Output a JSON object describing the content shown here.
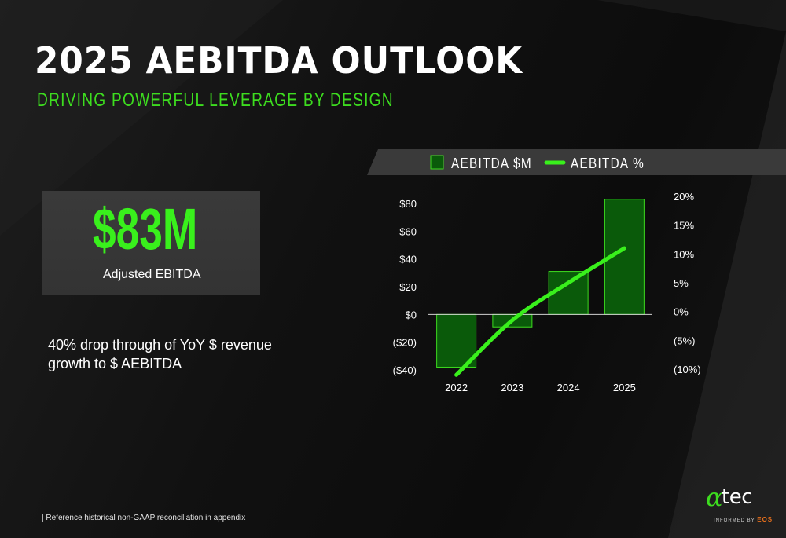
{
  "header": {
    "title": "2025 AEBITDA OUTLOOK",
    "subtitle": "DRIVING POWERFUL LEVERAGE BY DESIGN"
  },
  "kpi": {
    "value": "$83M",
    "label": "Adjusted EBITDA"
  },
  "note": "40% drop through of YoY $ revenue growth to $ AEBITDA",
  "footnote": "| Reference historical non-GAAP reconciliation in appendix",
  "logo": {
    "alpha": "α",
    "word": "tec",
    "tag_prefix": "INFORMED BY",
    "tag_brand": "EOS"
  },
  "colors": {
    "accent": "#3ddc1f",
    "bar_fill": "#0a5a0a",
    "bar_stroke": "#3ddc1f",
    "line": "#39f01c",
    "logo_brand": "#e8701c"
  },
  "chart_data": {
    "type": "bar",
    "categories": [
      "2022",
      "2023",
      "2024",
      "2025"
    ],
    "series": [
      {
        "name": "AEBITDA $M",
        "type": "bar",
        "axis": "left",
        "values": [
          -38,
          -9,
          31,
          83
        ]
      },
      {
        "name": "AEBITDA %",
        "type": "line",
        "axis": "right",
        "values": [
          -11,
          -1.5,
          5,
          11
        ]
      }
    ],
    "y_left": {
      "ylim": [
        -40,
        80
      ],
      "ticks": [
        80,
        60,
        40,
        20,
        0,
        -20,
        -40
      ],
      "tick_labels": [
        "$80",
        "$60",
        "$40",
        "$20",
        "$0",
        "($20)",
        "($40)"
      ]
    },
    "y_right": {
      "ylim": [
        -10,
        20
      ],
      "ticks": [
        20,
        15,
        10,
        5,
        0,
        -5,
        -10
      ],
      "tick_labels": [
        "20%",
        "15%",
        "10%",
        "5%",
        "0%",
        "(5%)",
        "(10%)"
      ]
    },
    "legend": [
      {
        "label": "AEBITDA $M",
        "marker": "square"
      },
      {
        "label": "AEBITDA %",
        "marker": "line"
      }
    ],
    "legend_position": "top",
    "grid": false
  }
}
